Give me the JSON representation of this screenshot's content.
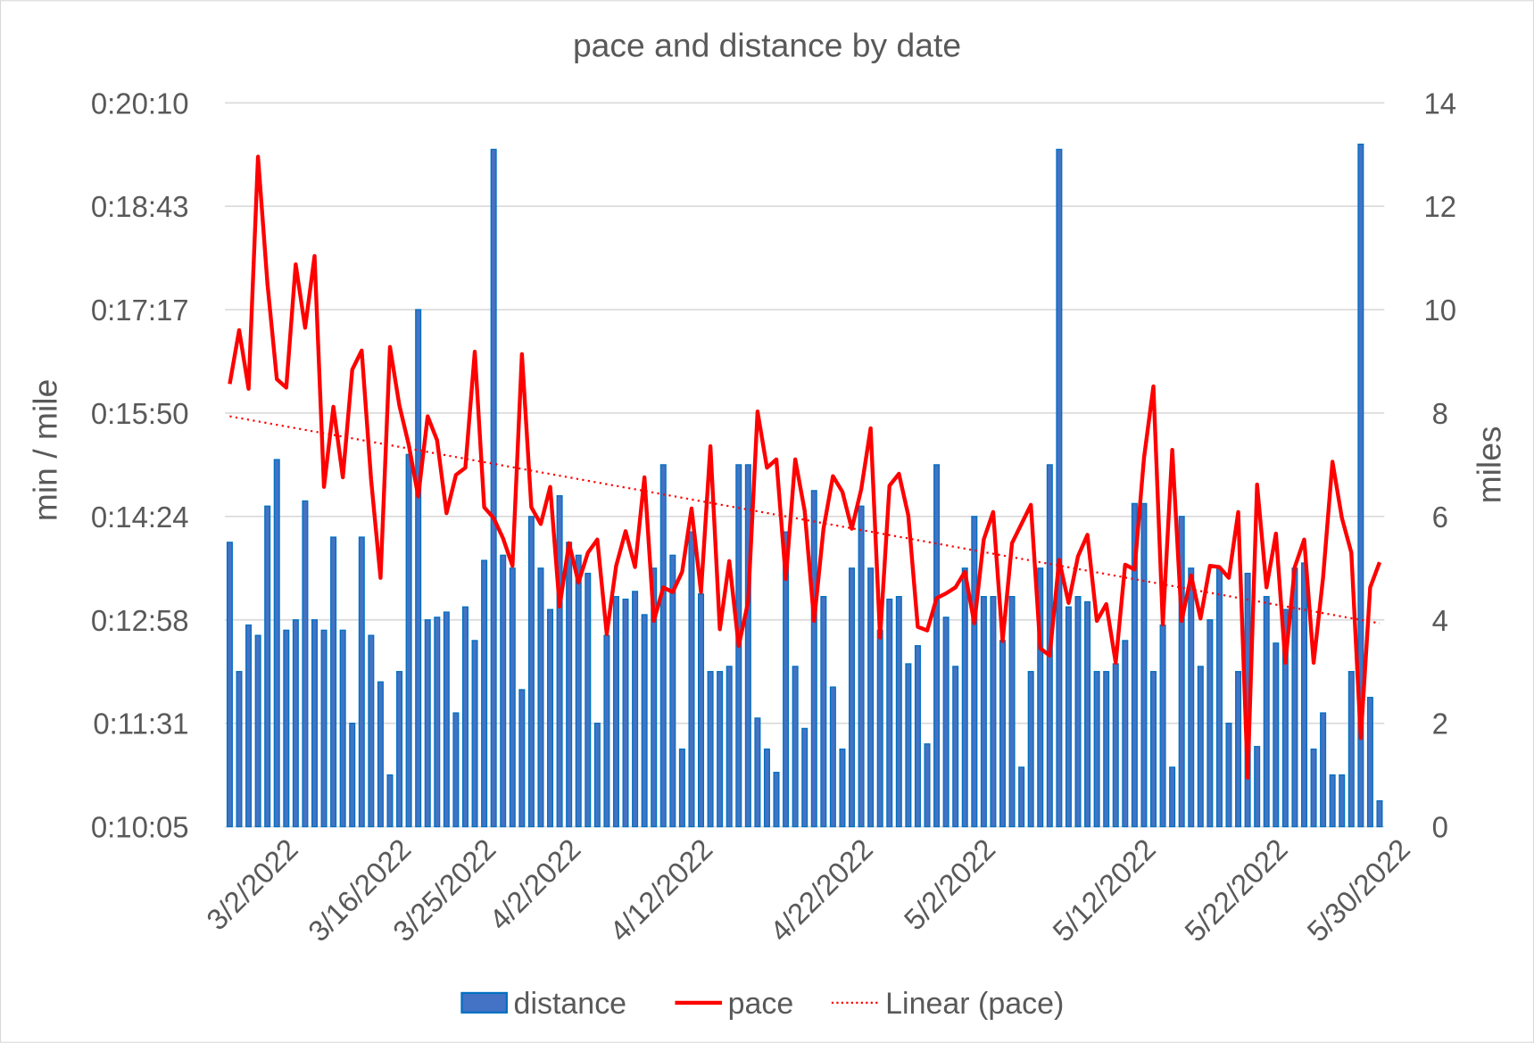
{
  "chart_data": {
    "type": "bar+line",
    "title": "pace and distance by date",
    "ylabel_left": "min / mile",
    "ylabel_right": "miles",
    "y_left_ticks": [
      "0:10:05",
      "0:11:31",
      "0:12:58",
      "0:14:24",
      "0:15:50",
      "0:17:17",
      "0:18:43",
      "0:20:10"
    ],
    "y_left_range_seconds": [
      605,
      1210
    ],
    "y_right_ticks": [
      "0",
      "2",
      "4",
      "6",
      "8",
      "10",
      "12",
      "14"
    ],
    "y_right_range": [
      0,
      14
    ],
    "x_ticks": [
      {
        "label": "3/2/2022",
        "index": 7
      },
      {
        "label": "3/16/2022",
        "index": 19
      },
      {
        "label": "3/25/2022",
        "index": 28
      },
      {
        "label": "4/2/2022",
        "index": 37
      },
      {
        "label": "4/12/2022",
        "index": 51
      },
      {
        "label": "4/22/2022",
        "index": 68
      },
      {
        "label": "5/2/2022",
        "index": 81
      },
      {
        "label": "5/12/2022",
        "index": 98
      },
      {
        "label": "5/22/2022",
        "index": 112
      },
      {
        "label": "5/30/2022",
        "index": 125
      }
    ],
    "grid": true,
    "legend": {
      "position": "bottom",
      "items": [
        "distance",
        "pace",
        "Linear (pace)"
      ]
    },
    "colors": {
      "distance": "#4472C4",
      "distance_edge": "#0070C0",
      "pace": "#FF0000",
      "trend": "#FF0000"
    },
    "series": [
      {
        "name": "distance",
        "axis": "right",
        "unit": "miles",
        "values": [
          5.5,
          3.0,
          3.9,
          3.7,
          6.2,
          7.1,
          3.8,
          4.0,
          6.3,
          4.0,
          3.8,
          5.6,
          3.8,
          2.0,
          5.6,
          3.7,
          2.8,
          1.0,
          3.0,
          7.2,
          10.0,
          4.0,
          4.05,
          4.15,
          2.2,
          4.25,
          3.6,
          5.15,
          13.1,
          5.25,
          5.0,
          2.65,
          6.0,
          5.0,
          4.2,
          6.4,
          5.5,
          5.25,
          4.9,
          2.0,
          3.7,
          4.45,
          4.4,
          4.55,
          4.1,
          5.0,
          7.0,
          5.25,
          1.5,
          5.7,
          4.5,
          3.0,
          3.0,
          3.1,
          7.0,
          7.0,
          2.1,
          1.5,
          1.05,
          5.7,
          3.1,
          1.9,
          6.5,
          4.45,
          2.7,
          1.5,
          5.0,
          6.2,
          5.0,
          3.8,
          4.4,
          4.45,
          3.15,
          3.5,
          1.6,
          7.0,
          4.05,
          3.1,
          5.0,
          6.0,
          4.45,
          4.45,
          3.6,
          4.45,
          1.15,
          3.0,
          5.0,
          7.0,
          13.1,
          4.25,
          4.45,
          4.35,
          3.0,
          3.0,
          3.15,
          3.6,
          6.25,
          6.25,
          3.0,
          3.9,
          1.15,
          6.0,
          5.0,
          3.1,
          4.0,
          5.0,
          2.0,
          3.0,
          4.9,
          1.55,
          4.45,
          3.55,
          4.2,
          5.0,
          5.1,
          1.5,
          2.2,
          1.0,
          1.0,
          3.0,
          13.2,
          2.5,
          0.5
        ]
      },
      {
        "name": "pace",
        "axis": "left",
        "unit": "seconds per mile",
        "values": [
          975,
          1020,
          971,
          1165,
          1059,
          979,
          972,
          1075,
          1022,
          1082,
          889,
          956,
          897,
          987,
          1003,
          895,
          813,
          1006,
          957,
          924,
          881,
          948,
          928,
          867,
          899,
          905,
          1002,
          872,
          863,
          846,
          823,
          1000,
          872,
          858,
          889,
          789,
          842,
          809,
          834,
          845,
          766,
          823,
          852,
          822,
          897,
          777,
          805,
          801,
          818,
          871,
          801,
          923,
          770,
          827,
          756,
          793,
          952,
          905,
          912,
          812,
          912,
          869,
          777,
          854,
          898,
          885,
          854,
          887,
          938,
          763,
          890,
          900,
          865,
          772,
          769,
          796,
          800,
          805,
          818,
          775,
          845,
          868,
          760,
          842,
          858,
          874,
          754,
          748,
          828,
          792,
          831,
          849,
          777,
          791,
          742,
          824,
          820,
          913,
          973,
          774,
          920,
          777,
          815,
          779,
          823,
          822,
          813,
          868,
          646,
          891,
          805,
          850,
          742,
          822,
          845,
          742,
          813,
          910,
          863,
          834,
          679,
          805,
          826
        ]
      }
    ],
    "trendline": {
      "name": "Linear (pace)",
      "type": "linear",
      "start_seconds": 948,
      "end_seconds": 775
    }
  }
}
